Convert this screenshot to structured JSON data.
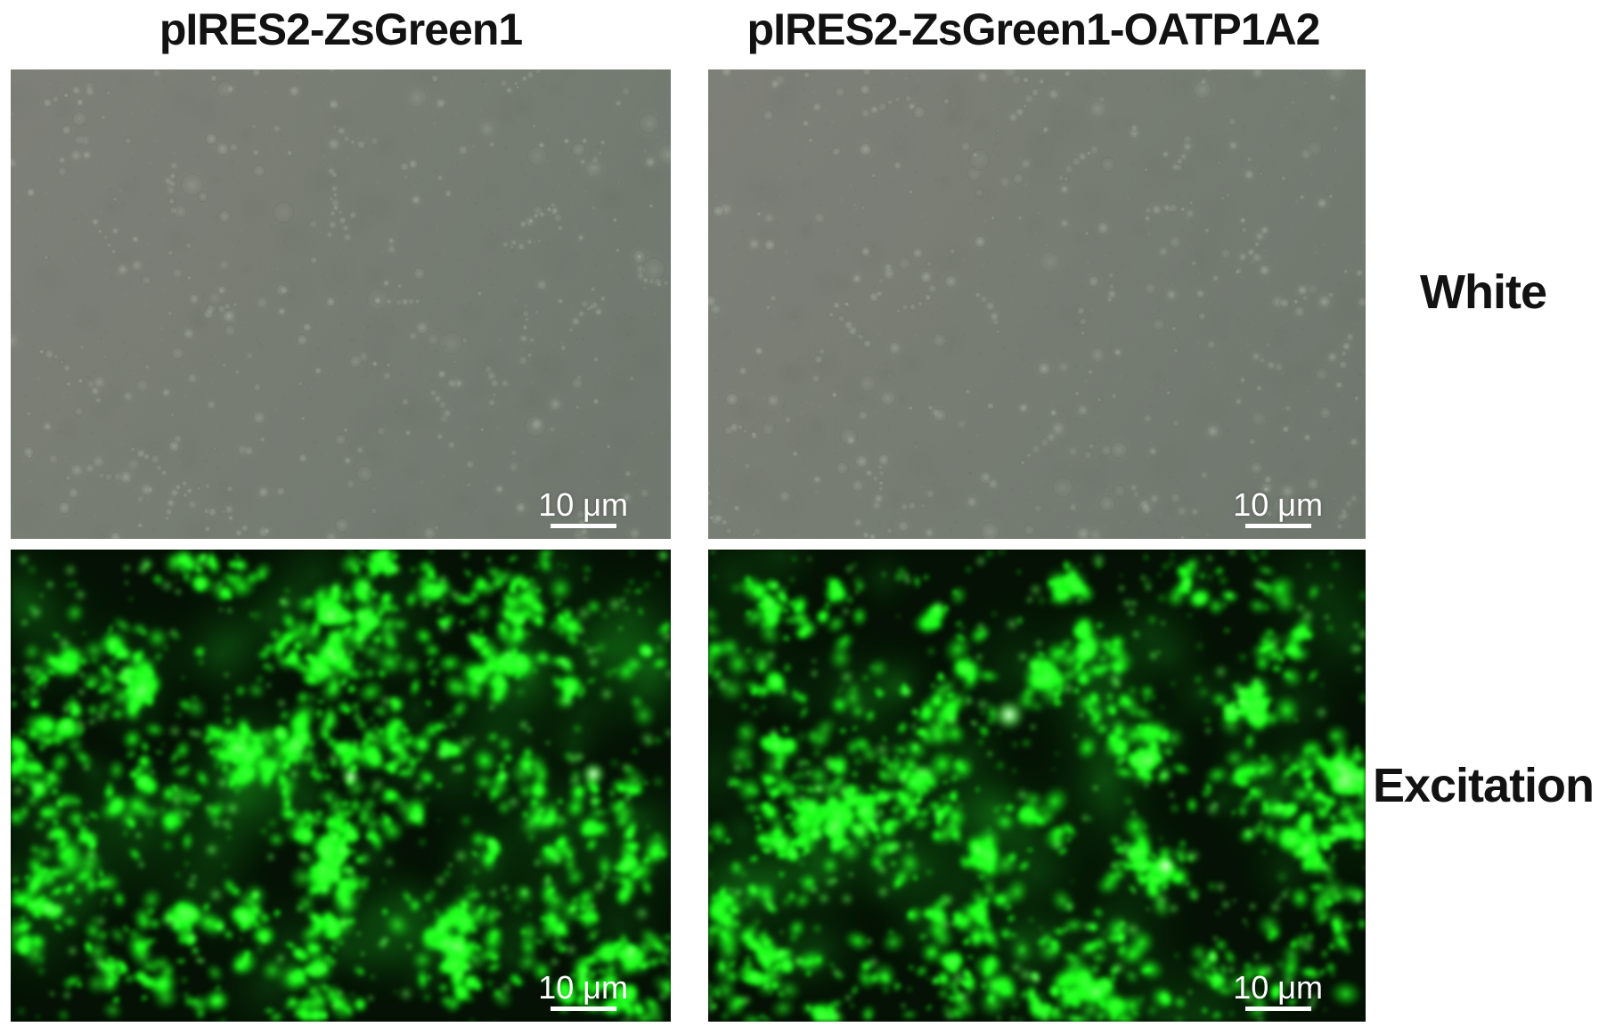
{
  "figure": {
    "columns": [
      {
        "title": "pIRES2-ZsGreen1"
      },
      {
        "title": "pIRES2-ZsGreen1-OATP1A2"
      }
    ],
    "rows": [
      {
        "label": "White",
        "type": "brightfield"
      },
      {
        "label": "Excitation",
        "type": "fluorescence"
      }
    ],
    "scale_bar_label": "10 μm",
    "panels": [
      {
        "row": "White",
        "column": "pIRES2-ZsGreen1",
        "type": "brightfield"
      },
      {
        "row": "White",
        "column": "pIRES2-ZsGreen1-OATP1A2",
        "type": "brightfield"
      },
      {
        "row": "Excitation",
        "column": "pIRES2-ZsGreen1",
        "type": "fluorescence"
      },
      {
        "row": "Excitation",
        "column": "pIRES2-ZsGreen1-OATP1A2",
        "type": "fluorescence"
      }
    ],
    "colors": {
      "page_background": "#ffffff",
      "text": "#121212",
      "brightfield_base": "#767d73",
      "brightfield_cell": "#c2c8ba",
      "fluorescence_background": "#041104",
      "fluorescence_green": "#00e61c",
      "scale_bar": "#ffffff"
    }
  }
}
